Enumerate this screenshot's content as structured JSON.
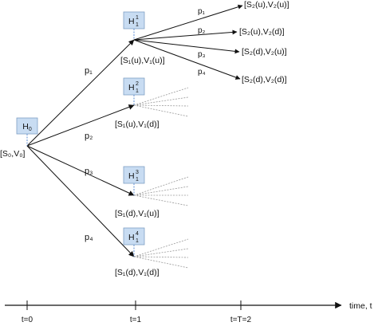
{
  "root": {
    "node": "H",
    "sub": "0",
    "state_label": "[S₀,V₀]"
  },
  "stage1": [
    {
      "sub": "1",
      "sup": "1",
      "state_label": "[S₁(u),V₁(u)]",
      "prob": "p₁"
    },
    {
      "sub": "1",
      "sup": "2",
      "state_label": "[S₁(u),V₁(d)]",
      "prob": "p₂"
    },
    {
      "sub": "1",
      "sup": "3",
      "state_label": "[S₁(d),V₁(u)]",
      "prob": "p₃"
    },
    {
      "sub": "1",
      "sup": "4",
      "state_label": "[S₁(d),V₁(d)]",
      "prob": "p₄"
    }
  ],
  "stage2_from_first": [
    {
      "prob": "p₁",
      "state_label": "[S₂(u),V₂(u)]"
    },
    {
      "prob": "p₂",
      "state_label": "[S₂(u),V₂(d)]"
    },
    {
      "prob": "p₃",
      "state_label": "[S₂(d),V₂(u)]"
    },
    {
      "prob": "p₄",
      "state_label": "[S₂(d),V₂(d)]"
    }
  ],
  "timeline": {
    "axis_label": "time, t",
    "ticks": [
      "t=0",
      "t=1",
      "t=T=2"
    ]
  },
  "colors": {
    "node_fill": "#c8dcf2",
    "node_border": "#7f9fc4",
    "dashed_stem": "#5b8ed6",
    "arrow": "#111111",
    "faint_branch": "#9a9a9a"
  }
}
